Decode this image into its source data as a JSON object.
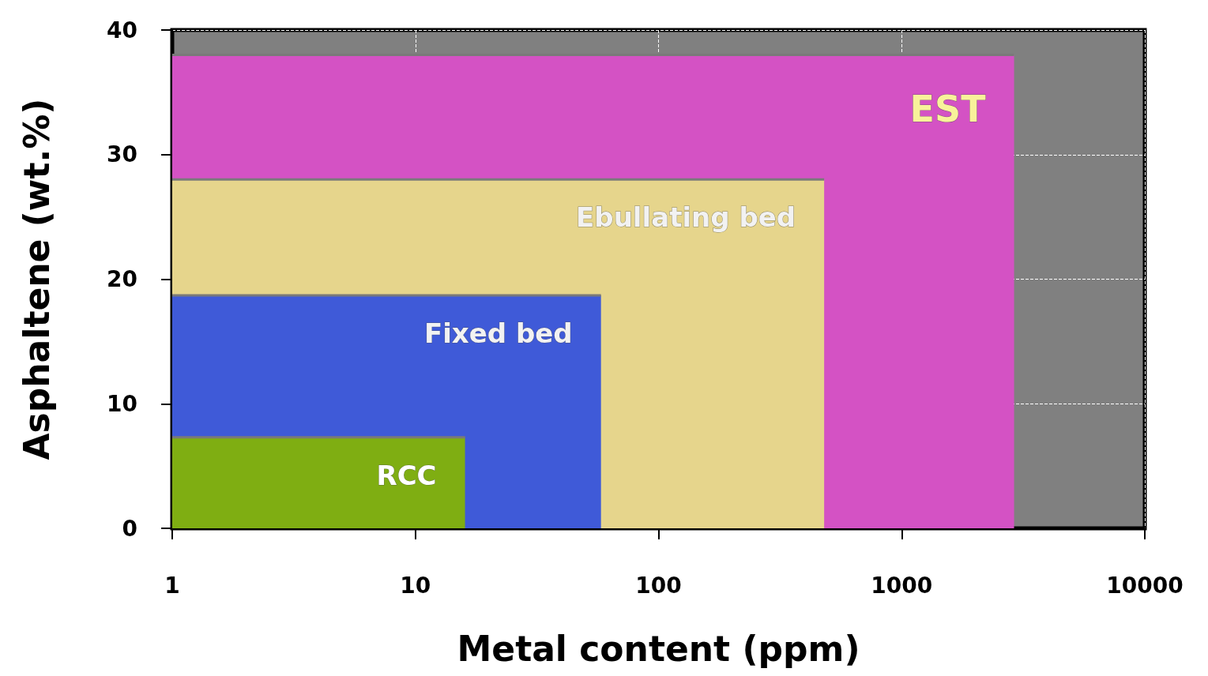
{
  "chart_data": {
    "type": "area",
    "xlabel": "Metal content (ppm)",
    "ylabel": "Asphaltene (wt.%)",
    "series": [
      {
        "name": "EST",
        "color": "#d452c4",
        "x": [
          1,
          2900
        ],
        "values": [
          38,
          38
        ]
      },
      {
        "name": "Ebullating bed",
        "color": "#e6d58c",
        "x": [
          1,
          480
        ],
        "values": [
          28,
          28
        ]
      },
      {
        "name": "Fixed bed",
        "color": "#3f5ad8",
        "x": [
          1,
          58
        ],
        "values": [
          18.7,
          18.7
        ]
      },
      {
        "name": "RCC",
        "color": "#7fae12",
        "x": [
          1,
          16
        ],
        "values": [
          7.3,
          7.3
        ]
      }
    ],
    "log": "x",
    "xlim": [
      1,
      10000
    ],
    "xticks": [
      1,
      10,
      100,
      1000,
      10000
    ],
    "ylim": [
      0,
      40
    ],
    "yticks": [
      0,
      10,
      20,
      30,
      40
    ],
    "grid": true,
    "legend": false
  }
}
